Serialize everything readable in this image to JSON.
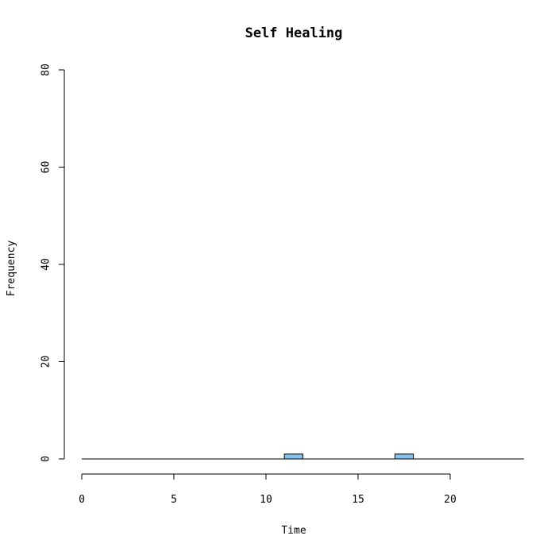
{
  "chart_data": {
    "type": "bar",
    "title": "Self Healing",
    "xlabel": "Time",
    "ylabel": "Frequency",
    "xlim": [
      0,
      24
    ],
    "ylim": [
      0,
      80
    ],
    "x_ticks": [
      0,
      5,
      10,
      15,
      20
    ],
    "y_ticks": [
      0,
      20,
      40,
      60,
      80
    ],
    "bin_width": 1,
    "bins": [
      {
        "start": 0,
        "end": 1,
        "count": 0
      },
      {
        "start": 1,
        "end": 2,
        "count": 0
      },
      {
        "start": 2,
        "end": 3,
        "count": 0
      },
      {
        "start": 3,
        "end": 4,
        "count": 0
      },
      {
        "start": 4,
        "end": 5,
        "count": 0
      },
      {
        "start": 5,
        "end": 6,
        "count": 0
      },
      {
        "start": 6,
        "end": 7,
        "count": 0
      },
      {
        "start": 7,
        "end": 8,
        "count": 0
      },
      {
        "start": 8,
        "end": 9,
        "count": 0
      },
      {
        "start": 9,
        "end": 10,
        "count": 0
      },
      {
        "start": 10,
        "end": 11,
        "count": 0
      },
      {
        "start": 11,
        "end": 12,
        "count": 1
      },
      {
        "start": 12,
        "end": 13,
        "count": 0
      },
      {
        "start": 13,
        "end": 14,
        "count": 0
      },
      {
        "start": 14,
        "end": 15,
        "count": 0
      },
      {
        "start": 15,
        "end": 16,
        "count": 0
      },
      {
        "start": 16,
        "end": 17,
        "count": 0
      },
      {
        "start": 17,
        "end": 18,
        "count": 1
      },
      {
        "start": 18,
        "end": 19,
        "count": 0
      },
      {
        "start": 19,
        "end": 20,
        "count": 0
      },
      {
        "start": 20,
        "end": 21,
        "count": 0
      },
      {
        "start": 21,
        "end": 22,
        "count": 0
      },
      {
        "start": 22,
        "end": 23,
        "count": 0
      },
      {
        "start": 23,
        "end": 24,
        "count": 0
      }
    ],
    "bar_color": "#87c3f0",
    "grid": false,
    "legend": "none"
  }
}
